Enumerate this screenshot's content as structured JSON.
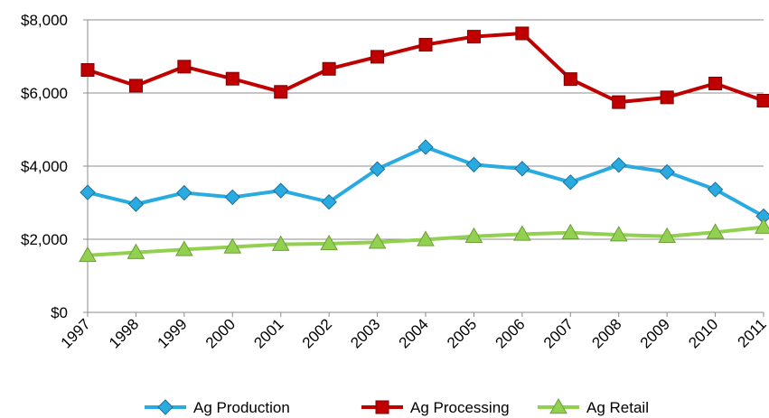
{
  "chart_data": {
    "type": "line",
    "title": "",
    "xlabel": "",
    "ylabel": "",
    "categories": [
      "1997",
      "1998",
      "1999",
      "2000",
      "2001",
      "2002",
      "2003",
      "2004",
      "2005",
      "2006",
      "2007",
      "2008",
      "2009",
      "2010",
      "2011"
    ],
    "ylim": [
      0,
      8000
    ],
    "y_ticks": [
      0,
      2000,
      4000,
      6000,
      8000
    ],
    "y_tick_labels": [
      "$0",
      "$2,000",
      "$4,000",
      "$6,000",
      "$8,000"
    ],
    "grid": "horizontal",
    "legend_position": "bottom",
    "series": [
      {
        "name": "Ag Production",
        "color": "#29ABE2",
        "marker": "diamond",
        "values": [
          3280,
          2960,
          3270,
          3150,
          3330,
          3020,
          3920,
          4520,
          4040,
          3930,
          3560,
          4030,
          3840,
          3360,
          2630
        ]
      },
      {
        "name": "Ag Processing",
        "color": "#C00000",
        "marker": "square",
        "values": [
          6630,
          6200,
          6720,
          6390,
          6030,
          6660,
          6990,
          7320,
          7540,
          7630,
          6380,
          5750,
          5880,
          6260,
          5790
        ]
      },
      {
        "name": "Ag Retail",
        "color": "#92D050",
        "marker": "triangle",
        "values": [
          1560,
          1640,
          1720,
          1790,
          1860,
          1880,
          1920,
          1990,
          2080,
          2140,
          2180,
          2120,
          2080,
          2190,
          2330
        ]
      }
    ]
  }
}
